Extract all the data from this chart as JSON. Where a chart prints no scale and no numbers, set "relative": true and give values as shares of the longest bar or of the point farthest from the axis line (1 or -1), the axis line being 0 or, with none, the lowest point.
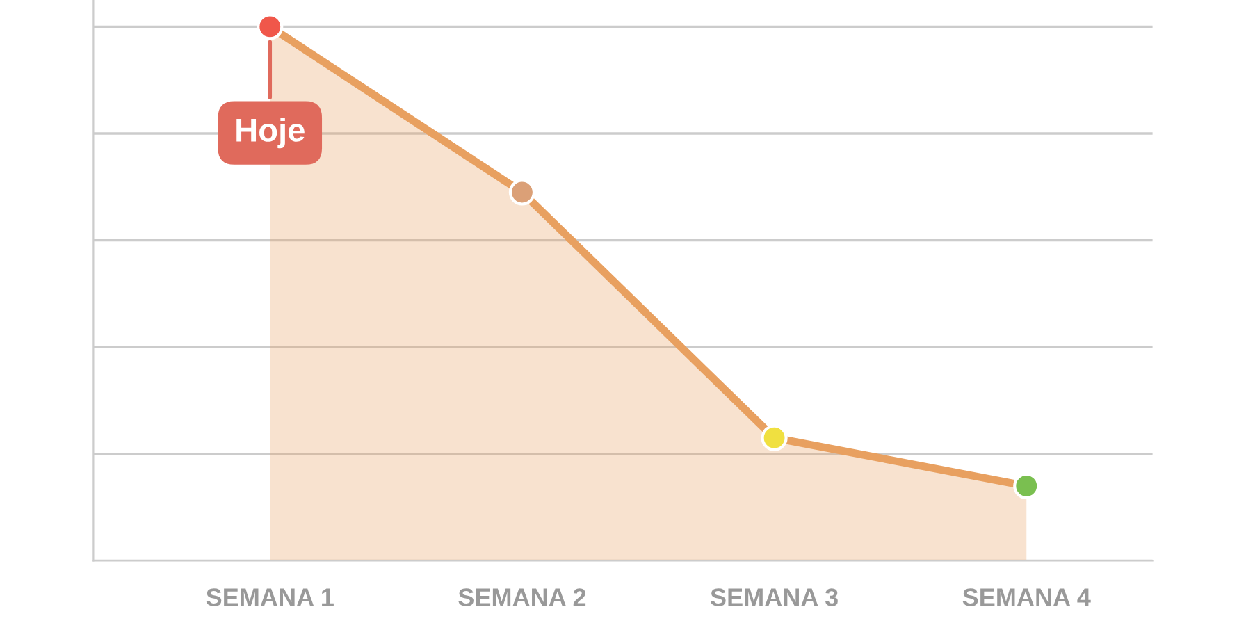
{
  "chart_data": {
    "type": "area",
    "relative": true,
    "categories": [
      "SEMANA 1",
      "SEMANA 2",
      "SEMANA 3",
      "SEMANA 4"
    ],
    "series": [
      {
        "color": "#e8a060",
        "colors": [
          "#f0574a",
          "#dba077",
          "#f0e040",
          "#7abf50"
        ],
        "values": [
          1,
          0.69,
          0.23,
          0.14
        ]
      }
    ],
    "annotations": [
      {
        "text": "Hoje",
        "x": "SEMANA 1",
        "y": 1
      }
    ],
    "grid": "y",
    "marker": "circle"
  }
}
